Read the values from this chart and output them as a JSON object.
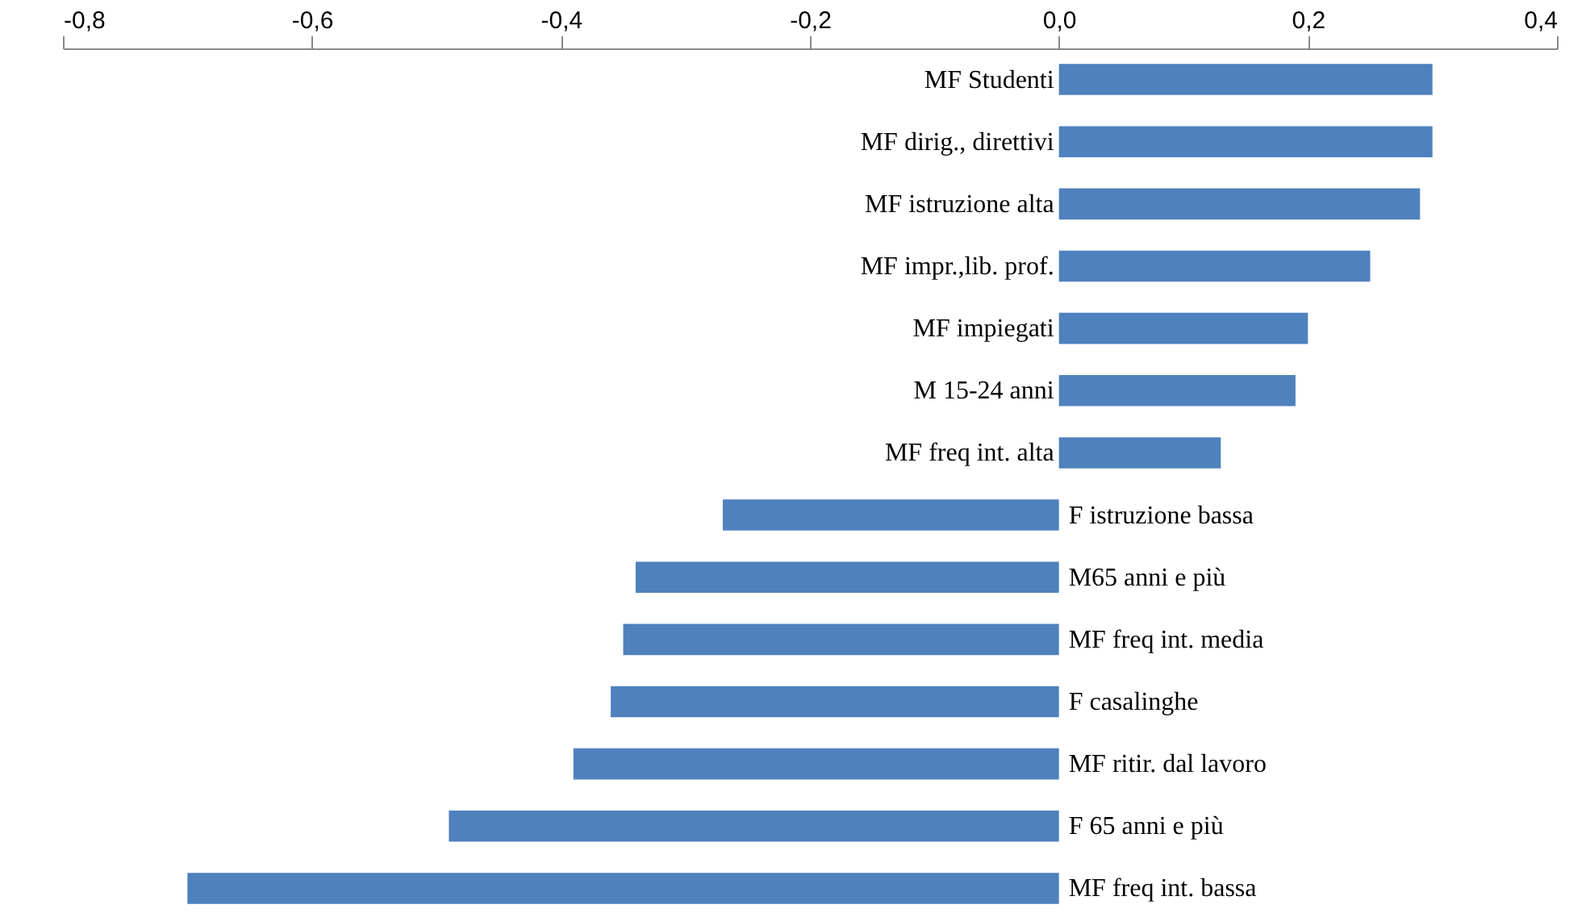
{
  "chart_data": {
    "type": "bar",
    "orientation": "horizontal",
    "categories": [
      "MF Studenti",
      "MF dirig., direttivi",
      "MF istruzione alta",
      "MF impr.,lib. prof.",
      "MF impiegati",
      "M 15-24 anni",
      "MF freq int. alta",
      "F istruzione bassa",
      "M65 anni e più",
      "MF freq int. media",
      "F casalinghe",
      "MF ritir. dal lavoro",
      "F 65 anni e più",
      "MF freq int. bassa"
    ],
    "values": [
      0.3,
      0.3,
      0.29,
      0.25,
      0.2,
      0.19,
      0.13,
      -0.27,
      -0.34,
      -0.35,
      -0.36,
      -0.39,
      -0.49,
      -0.7
    ],
    "color": "#4f81bd",
    "xlim": [
      -0.8,
      0.4
    ],
    "xticks": [
      {
        "value": -0.8,
        "label": "-0,8"
      },
      {
        "value": -0.6,
        "label": "-0,6"
      },
      {
        "value": -0.4,
        "label": "-0,4"
      },
      {
        "value": -0.2,
        "label": "-0,2"
      },
      {
        "value": 0,
        "label": "0,0"
      },
      {
        "value": 0.2,
        "label": "0,2"
      },
      {
        "value": 0.4,
        "label": "0,4"
      }
    ],
    "grid": false
  }
}
